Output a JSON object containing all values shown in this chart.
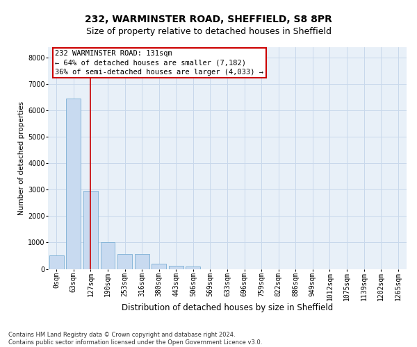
{
  "title1": "232, WARMINSTER ROAD, SHEFFIELD, S8 8PR",
  "title2": "Size of property relative to detached houses in Sheffield",
  "xlabel": "Distribution of detached houses by size in Sheffield",
  "ylabel": "Number of detached properties",
  "bar_categories": [
    "0sqm",
    "63sqm",
    "127sqm",
    "190sqm",
    "253sqm",
    "316sqm",
    "380sqm",
    "443sqm",
    "506sqm",
    "569sqm",
    "633sqm",
    "696sqm",
    "759sqm",
    "822sqm",
    "886sqm",
    "949sqm",
    "1012sqm",
    "1075sqm",
    "1139sqm",
    "1202sqm",
    "1265sqm"
  ],
  "bar_values": [
    500,
    6450,
    2950,
    1000,
    560,
    560,
    190,
    130,
    80,
    0,
    0,
    0,
    0,
    0,
    0,
    0,
    0,
    0,
    0,
    0,
    0
  ],
  "bar_color": "#c8daf0",
  "bar_edge_color": "#7bafd4",
  "property_line_x": 2.0,
  "property_line_color": "#cc0000",
  "annotation_line1": "232 WARMINSTER ROAD: 131sqm",
  "annotation_line2": "← 64% of detached houses are smaller (7,182)",
  "annotation_line3": "36% of semi-detached houses are larger (4,033) →",
  "annotation_box_color": "#cc0000",
  "ylim": [
    0,
    8400
  ],
  "yticks": [
    0,
    1000,
    2000,
    3000,
    4000,
    5000,
    6000,
    7000,
    8000
  ],
  "grid_color": "#c8d8eb",
  "bg_color": "#e8f0f8",
  "footer_text": "Contains HM Land Registry data © Crown copyright and database right 2024.\nContains public sector information licensed under the Open Government Licence v3.0.",
  "title1_fontsize": 10,
  "title2_fontsize": 9,
  "xlabel_fontsize": 8.5,
  "ylabel_fontsize": 7.5,
  "tick_fontsize": 7,
  "annotation_fontsize": 7.5,
  "footer_fontsize": 6
}
